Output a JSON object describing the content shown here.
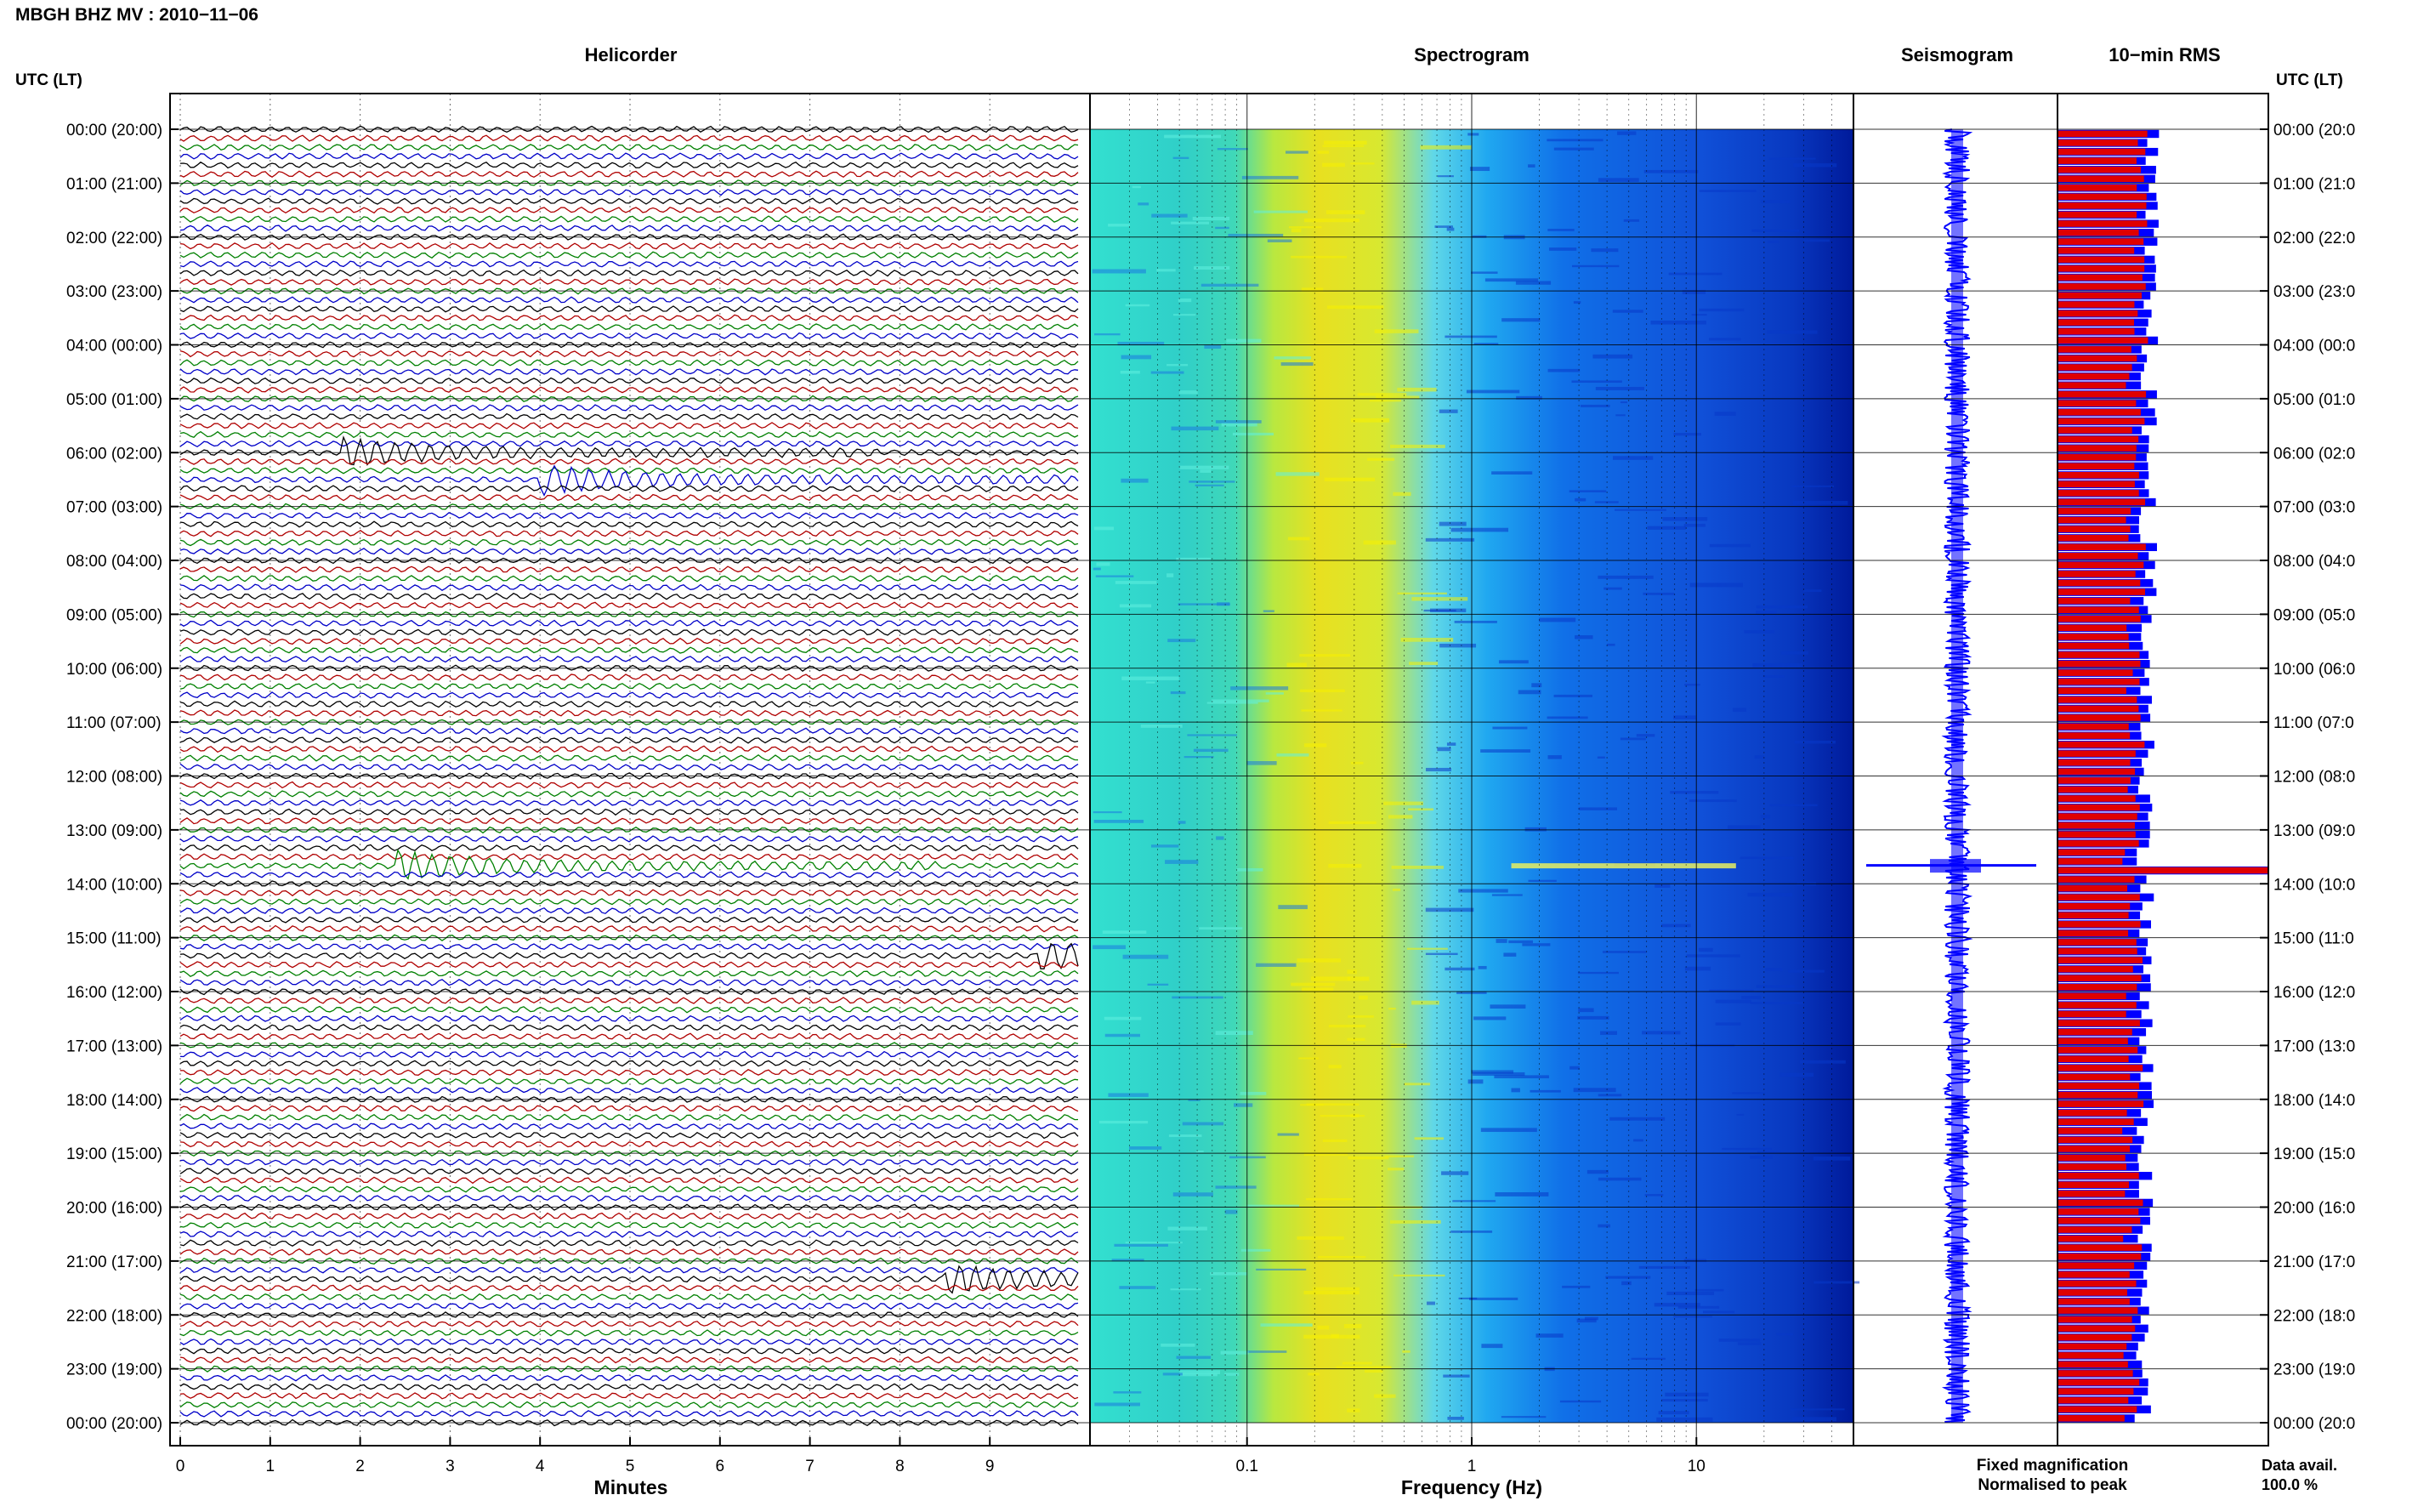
{
  "title": "MBGH BHZ MV : 2010−11−06",
  "panels": {
    "helicorder": "Helicorder",
    "spectrogram": "Spectrogram",
    "seismogram": "Seismogram",
    "rms": "10−min RMS"
  },
  "axis": {
    "left_header": "UTC (LT)",
    "right_header": "UTC (LT)",
    "x_helicorder": "Minutes",
    "x_spectrogram": "Frequency (Hz)"
  },
  "time_labels_left": [
    "00:00 (20:00)",
    "01:00 (21:00)",
    "02:00 (22:00)",
    "03:00 (23:00)",
    "04:00 (00:00)",
    "05:00 (01:00)",
    "06:00 (02:00)",
    "07:00 (03:00)",
    "08:00 (04:00)",
    "09:00 (05:00)",
    "10:00 (06:00)",
    "11:00 (07:00)",
    "12:00 (08:00)",
    "13:00 (09:00)",
    "14:00 (10:00)",
    "15:00 (11:00)",
    "16:00 (12:00)",
    "17:00 (13:00)",
    "18:00 (14:00)",
    "19:00 (15:00)",
    "20:00 (16:00)",
    "21:00 (17:00)",
    "22:00 (18:00)",
    "23:00 (19:00)",
    "00:00 (20:00)"
  ],
  "time_labels_right": [
    "00:00 (20:0",
    "01:00 (21:0",
    "02:00 (22:0",
    "03:00 (23:0",
    "04:00 (00:0",
    "05:00 (01:0",
    "06:00 (02:0",
    "07:00 (03:0",
    "08:00 (04:0",
    "09:00 (05:0",
    "10:00 (06:0",
    "11:00 (07:0",
    "12:00 (08:0",
    "13:00 (09:0",
    "14:00 (10:0",
    "15:00 (11:0",
    "16:00 (12:0",
    "17:00 (13:0",
    "18:00 (14:0",
    "19:00 (15:0",
    "20:00 (16:0",
    "21:00 (17:0",
    "22:00 (18:0",
    "23:00 (19:0",
    "00:00 (20:0"
  ],
  "minute_ticks": [
    "0",
    "1",
    "2",
    "3",
    "4",
    "5",
    "6",
    "7",
    "8",
    "9"
  ],
  "freq_ticks": [
    "0.1",
    "1",
    "10"
  ],
  "legend": {
    "fixed": "Fixed magnification",
    "normalised": "Normalised to peak",
    "fixed_color": "#0000ff",
    "normalised_color": "#ff0000"
  },
  "data_avail": {
    "label": "Data avail.",
    "value": "100.0 %"
  },
  "colors": {
    "trace_cycle": [
      "#000000",
      "#b00000",
      "#008000",
      "#0000c8"
    ],
    "rms_normalised": "#e00000",
    "rms_fixed": "#0000ff",
    "seismogram": "#0000ff"
  },
  "chart_data": {
    "type": "heatmap",
    "helicorder": {
      "minutes_range": [
        0,
        10
      ],
      "hours_range": [
        0,
        24
      ],
      "events": [
        {
          "time_utc": "06:00",
          "minute": 1.8
        },
        {
          "time_utc": "06:30",
          "minute": 4.0
        },
        {
          "time_utc": "13:40",
          "minute": 2.4
        },
        {
          "time_utc": "15:20",
          "minute": 9.5
        },
        {
          "time_utc": "21:20",
          "minute": 8.5
        }
      ]
    },
    "spectrogram": {
      "frequency_range_hz": [
        0.02,
        50
      ],
      "x_scale": "log",
      "peak_band_hz": [
        0.2,
        0.5
      ],
      "event_time_utc": "13:40"
    },
    "rms_10min": {
      "interval_min": 10,
      "spike_time_utc": "13:40"
    }
  }
}
